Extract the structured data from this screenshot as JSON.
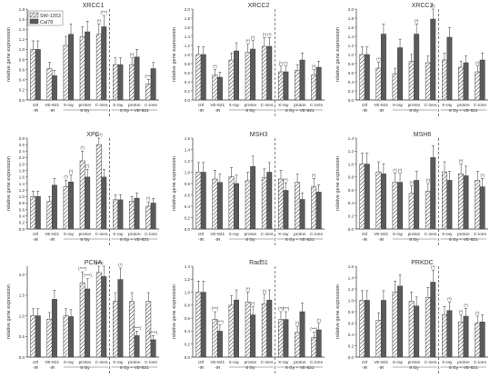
{
  "colors": {
    "line_a": "#444444",
    "dark_bar": "#5a5a5a",
    "axis": "#333333"
  },
  "legend": {
    "series_a": "SW-1353",
    "series_b": "Cal78"
  },
  "common": {
    "ylabel": "relative gene expression",
    "tick_lines": [
      [
        "ctrl",
        "-IR"
      ],
      [
        "VE-821",
        "-IR"
      ],
      [
        "X-ray",
        ""
      ],
      [
        "proton",
        "8 Gy"
      ],
      [
        "C-ions",
        ""
      ],
      [
        "X-ray",
        ""
      ],
      [
        "proton",
        "8 Gy + VE-821"
      ],
      [
        "C-ions",
        ""
      ]
    ]
  },
  "chart_data": [
    {
      "type": "bar",
      "title": "XRCC1",
      "ylim": [
        0,
        1.8
      ],
      "yticks": [
        "0.0",
        "0.2",
        "0.4",
        "0.6",
        "0.8",
        "1.0",
        "1.2",
        "1.4",
        "1.6",
        "1.8"
      ],
      "series": [
        {
          "name": "SW-1353",
          "values": [
            1.0,
            0.62,
            1.08,
            1.25,
            1.3,
            0.7,
            0.7,
            0.32
          ]
        },
        {
          "name": "Cal78",
          "values": [
            1.0,
            0.48,
            1.3,
            1.35,
            1.45,
            0.7,
            0.85,
            0.62
          ]
        }
      ],
      "annotations": [
        {
          "bar": 4,
          "series": 0,
          "text": "(*)"
        },
        {
          "bar": 4,
          "series": 1,
          "text": "(***)"
        },
        {
          "bar": 6,
          "series": 0,
          "text": "(*)"
        },
        {
          "bar": 7,
          "series": 0,
          "text": "(***)"
        }
      ]
    },
    {
      "type": "bar",
      "title": "XRCC2",
      "ylim": [
        0,
        2.0
      ],
      "yticks": [
        "0.0",
        "0.2",
        "0.4",
        "0.6",
        "0.8",
        "1.0",
        "1.2",
        "1.4",
        "1.6",
        "1.8",
        "2.0"
      ],
      "series": [
        {
          "name": "SW-1353",
          "values": [
            1.0,
            0.55,
            0.88,
            1.05,
            1.18,
            0.62,
            0.65,
            0.55
          ]
        },
        {
          "name": "Cal78",
          "values": [
            1.0,
            0.5,
            1.08,
            1.12,
            1.18,
            0.62,
            0.88,
            0.72
          ]
        }
      ],
      "annotations": [
        {
          "bar": 1,
          "series": 0,
          "text": "(*)"
        },
        {
          "bar": 3,
          "series": 0,
          "text": "(*)"
        },
        {
          "bar": 3,
          "series": 1,
          "text": "(*)"
        },
        {
          "bar": 4,
          "series": 0,
          "text": "(*)"
        },
        {
          "bar": 4,
          "series": 1,
          "text": "(*)"
        },
        {
          "bar": 5,
          "series": 0,
          "text": "(*)"
        },
        {
          "bar": 5,
          "series": 1,
          "text": "(*)"
        },
        {
          "bar": 7,
          "series": 0,
          "text": "(*)"
        }
      ]
    },
    {
      "type": "bar",
      "title": "XRCC3",
      "ylim": [
        0,
        2.0
      ],
      "yticks": [
        "0.0",
        "0.2",
        "0.4",
        "0.6",
        "0.8",
        "1.0",
        "1.2",
        "1.4",
        "1.6",
        "1.8",
        "2.0"
      ],
      "series": [
        {
          "name": "SW-1353",
          "values": [
            1.0,
            0.7,
            0.58,
            0.85,
            0.82,
            0.88,
            0.72,
            0.62
          ]
        },
        {
          "name": "Cal78",
          "values": [
            1.0,
            1.45,
            1.15,
            1.45,
            1.78,
            1.38,
            0.82,
            0.88
          ]
        }
      ],
      "annotations": [
        {
          "bar": 1,
          "series": 0,
          "text": "(*)"
        },
        {
          "bar": 3,
          "series": 1,
          "text": "(*)"
        },
        {
          "bar": 4,
          "series": 1,
          "text": "(*)"
        },
        {
          "bar": 7,
          "series": 0,
          "text": "(*)"
        }
      ]
    },
    {
      "type": "bar",
      "title": "XPC",
      "ylim": [
        0,
        2.8
      ],
      "yticks": [
        "0.0",
        "0.2",
        "0.4",
        "0.6",
        "0.8",
        "1.0",
        "1.2",
        "1.4",
        "1.6",
        "1.8",
        "2.0",
        "2.2",
        "2.4",
        "2.6",
        "2.8"
      ],
      "series": [
        {
          "name": "SW-1353",
          "values": [
            1.0,
            0.85,
            1.3,
            2.1,
            2.6,
            0.9,
            0.85,
            0.7
          ]
        },
        {
          "name": "Cal78",
          "values": [
            1.0,
            1.35,
            1.45,
            1.6,
            1.6,
            0.9,
            0.95,
            0.8
          ]
        }
      ],
      "annotations": [
        {
          "bar": 2,
          "series": 0,
          "text": "(*)"
        },
        {
          "bar": 2,
          "series": 1,
          "text": "(*)"
        },
        {
          "bar": 3,
          "series": 0,
          "text": "(*)"
        },
        {
          "bar": 3,
          "series": 1,
          "text": "(*)"
        },
        {
          "bar": 4,
          "series": 0,
          "text": "(***)"
        },
        {
          "bar": 7,
          "series": 0,
          "text": "(*)"
        }
      ]
    },
    {
      "type": "bar",
      "title": "MSH3",
      "ylim": [
        0,
        1.6
      ],
      "yticks": [
        "0.0",
        "0.2",
        "0.4",
        "0.6",
        "0.8",
        "1.0",
        "1.2",
        "1.4",
        "1.6"
      ],
      "series": [
        {
          "name": "SW-1353",
          "values": [
            1.0,
            0.88,
            0.92,
            0.85,
            0.9,
            0.88,
            0.82,
            0.75
          ]
        },
        {
          "name": "Cal78",
          "values": [
            1.0,
            0.82,
            0.8,
            1.1,
            1.0,
            0.68,
            0.52,
            0.65
          ]
        }
      ],
      "annotations": [
        {
          "bar": 5,
          "series": 1,
          "text": "(*)"
        },
        {
          "bar": 7,
          "series": 0,
          "text": "(*)"
        }
      ]
    },
    {
      "type": "bar",
      "title": "MSH6",
      "ylim": [
        0,
        1.4
      ],
      "yticks": [
        "0.0",
        "0.2",
        "0.4",
        "0.6",
        "0.8",
        "1.0",
        "1.2",
        "1.4"
      ],
      "series": [
        {
          "name": "SW-1353",
          "values": [
            1.0,
            0.88,
            0.72,
            0.55,
            0.58,
            0.88,
            0.85,
            0.75
          ]
        },
        {
          "name": "Cal78",
          "values": [
            1.0,
            0.85,
            0.72,
            0.75,
            1.1,
            0.75,
            0.82,
            0.65
          ]
        }
      ],
      "annotations": [
        {
          "bar": 2,
          "series": 0,
          "text": "(*)"
        },
        {
          "bar": 2,
          "series": 1,
          "text": "(*)"
        },
        {
          "bar": 3,
          "series": 0,
          "text": "(*)"
        },
        {
          "bar": 4,
          "series": 0,
          "text": "(*)"
        },
        {
          "bar": 6,
          "series": 0,
          "text": "(*)"
        },
        {
          "bar": 7,
          "series": 1,
          "text": "(*)"
        }
      ]
    },
    {
      "type": "bar",
      "title": "PCNA",
      "ylim": [
        0,
        2.2
      ],
      "yticks": [
        "0.0",
        "0.5",
        "1.0",
        "1.5",
        "2.0"
      ],
      "series": [
        {
          "name": "SW-1353",
          "values": [
            1.0,
            0.92,
            1.0,
            1.8,
            2.05,
            1.35,
            1.35,
            1.35
          ]
        },
        {
          "name": "Cal78",
          "values": [
            1.0,
            1.4,
            0.98,
            1.65,
            1.95,
            1.88,
            0.52,
            0.42
          ]
        }
      ],
      "annotations": [
        {
          "bar": 3,
          "series": 0,
          "text": "(****)"
        },
        {
          "bar": 3,
          "series": 1,
          "text": "(****)"
        },
        {
          "bar": 4,
          "series": 0,
          "text": "(****)"
        },
        {
          "bar": 5,
          "series": 1,
          "text": "(*)"
        },
        {
          "bar": 6,
          "series": 1,
          "text": "(****)"
        },
        {
          "bar": 7,
          "series": 1,
          "text": "(****)"
        }
      ]
    },
    {
      "type": "bar",
      "title": "Rad51",
      "ylim": [
        0,
        1.4
      ],
      "yticks": [
        "0.0",
        "0.2",
        "0.4",
        "0.6",
        "0.8",
        "1.0",
        "1.2",
        "1.4"
      ],
      "series": [
        {
          "name": "SW-1353",
          "values": [
            1.0,
            0.58,
            0.8,
            0.85,
            0.82,
            0.58,
            0.38,
            0.3
          ]
        },
        {
          "name": "Cal78",
          "values": [
            1.0,
            0.4,
            0.88,
            0.65,
            0.88,
            0.58,
            0.7,
            0.42
          ]
        }
      ],
      "annotations": [
        {
          "bar": 1,
          "series": 0,
          "text": "(***)"
        },
        {
          "bar": 1,
          "series": 1,
          "text": "(***)"
        },
        {
          "bar": 3,
          "series": 0,
          "text": "(*)"
        },
        {
          "bar": 3,
          "series": 1,
          "text": "(*)"
        },
        {
          "bar": 4,
          "series": 0,
          "text": "(*)"
        },
        {
          "bar": 5,
          "series": 0,
          "text": "(**)"
        },
        {
          "bar": 5,
          "series": 1,
          "text": "(***)"
        },
        {
          "bar": 6,
          "series": 0,
          "text": "(*)"
        },
        {
          "bar": 7,
          "series": 0,
          "text": "(***)"
        },
        {
          "bar": 7,
          "series": 1,
          "text": "(*)"
        }
      ]
    },
    {
      "type": "bar",
      "title": "PRKDC",
      "ylim": [
        0,
        1.6
      ],
      "yticks": [
        "0.0",
        "0.2",
        "0.4",
        "0.6",
        "0.8",
        "1.0",
        "1.2",
        "1.4",
        "1.6"
      ],
      "series": [
        {
          "name": "SW-1353",
          "values": [
            1.0,
            0.65,
            1.15,
            0.98,
            1.05,
            0.75,
            0.62,
            0.6
          ]
        },
        {
          "name": "Cal78",
          "values": [
            1.0,
            1.0,
            1.25,
            0.9,
            1.32,
            0.82,
            0.72,
            0.62
          ]
        }
      ],
      "annotations": [
        {
          "bar": 4,
          "series": 1,
          "text": "(*)"
        },
        {
          "bar": 5,
          "series": 1,
          "text": "(*)"
        },
        {
          "bar": 6,
          "series": 0,
          "text": "(*)"
        },
        {
          "bar": 6,
          "series": 1,
          "text": "(*)"
        },
        {
          "bar": 7,
          "series": 0,
          "text": "(*)"
        }
      ]
    }
  ]
}
